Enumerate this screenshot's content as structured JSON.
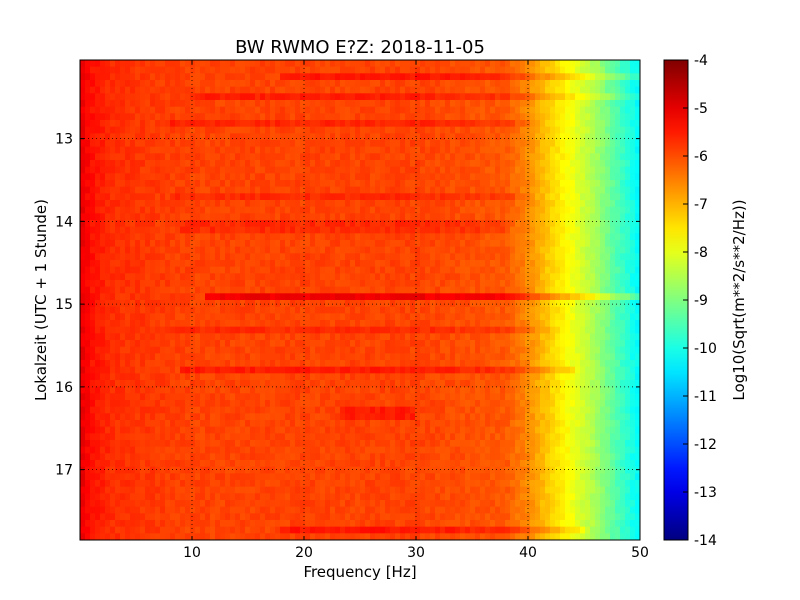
{
  "chart_data": {
    "type": "heatmap",
    "title": "BW RWMO E?Z: 2018-11-05",
    "xlabel": "Frequency [Hz]",
    "ylabel": "Lokalzeit (UTC + 1 Stunde)",
    "xlim": [
      0,
      50
    ],
    "ylim": [
      12.05,
      17.85
    ],
    "y_inverted": true,
    "x_ticks": [
      "10",
      "20",
      "30",
      "40",
      "50"
    ],
    "y_ticks": [
      "13",
      "14",
      "15",
      "16",
      "17"
    ],
    "grid": "dotted",
    "colormap": "jet",
    "colorbar": {
      "label": "Log10(Sqrt(m**2/s**2/Hz))",
      "range": [
        -14,
        -4
      ],
      "ticks": [
        "-4",
        "-5",
        "-6",
        "-7",
        "-8",
        "-9",
        "-10",
        "-11",
        "-12",
        "-13",
        "-14"
      ]
    },
    "profile": [
      {
        "freq": 0,
        "value": -5.0
      },
      {
        "freq": 1,
        "value": -5.4
      },
      {
        "freq": 3,
        "value": -5.7
      },
      {
        "freq": 10,
        "value": -5.9
      },
      {
        "freq": 30,
        "value": -5.9
      },
      {
        "freq": 38,
        "value": -6.1
      },
      {
        "freq": 40,
        "value": -6.6
      },
      {
        "freq": 42,
        "value": -7.3
      },
      {
        "freq": 44,
        "value": -7.9
      },
      {
        "freq": 46,
        "value": -8.6
      },
      {
        "freq": 48,
        "value": -9.5
      },
      {
        "freq": 50,
        "value": -10.3
      }
    ],
    "bands": [
      {
        "time": 12.22,
        "fmin": 18,
        "fmax": 50,
        "offset": 0.45
      },
      {
        "time": 12.52,
        "fmin": 10,
        "fmax": 50,
        "offset": 0.35
      },
      {
        "time": 12.83,
        "fmin": 8,
        "fmax": 40,
        "offset": 0.3
      },
      {
        "time": 13.72,
        "fmin": 8,
        "fmax": 40,
        "offset": 0.25
      },
      {
        "time": 14.07,
        "fmin": 9,
        "fmax": 38,
        "offset": 0.25
      },
      {
        "time": 14.88,
        "fmin": 11,
        "fmax": 50,
        "offset": 0.8
      },
      {
        "time": 15.33,
        "fmin": 8,
        "fmax": 42,
        "offset": 0.25
      },
      {
        "time": 15.79,
        "fmin": 9,
        "fmax": 44,
        "offset": 0.4
      },
      {
        "time": 16.32,
        "fmin": 23,
        "fmax": 30,
        "offset": 0.4
      },
      {
        "time": 17.72,
        "fmin": 18,
        "fmax": 45,
        "offset": 0.45
      }
    ]
  }
}
